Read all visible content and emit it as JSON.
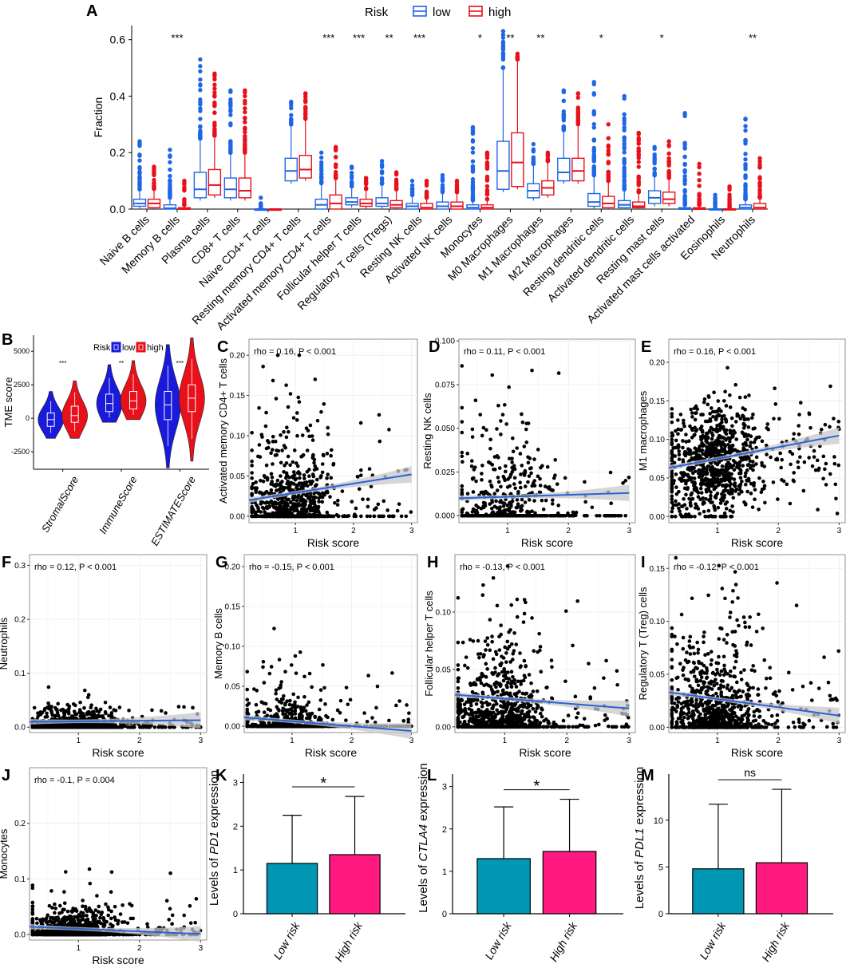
{
  "chart_data": [
    {
      "id": "A",
      "panel_label": "A",
      "type": "box",
      "legend": {
        "title": "Risk",
        "entries": [
          {
            "name": "low",
            "color": "#1f66e5"
          },
          {
            "name": "high",
            "color": "#e8101a"
          }
        ],
        "position": "top"
      },
      "ylabel": "Fraction",
      "ylim": [
        0,
        0.65
      ],
      "yticks": [
        "0.0",
        "0.2",
        "0.4",
        "0.6"
      ],
      "categories": [
        "Naive B cells",
        "Memory B cells",
        "Plasma cells",
        "CD8+ T cells",
        "Naive CD4+ T cells",
        "Resting memory CD4+ T cells",
        "Activated memory CD4+ T cells",
        "Follicular helper T cells",
        "Regulatory T cells (Tregs)",
        "Resting NK cells",
        "Activated NK cells",
        "Monocytes",
        "M0 Macrophages",
        "M1 Macrophages",
        "M2 Macrophages",
        "Resting dendritic cells",
        "Activated dendritic cells",
        "Resting mast cells",
        "Activated mast cells activated",
        "Eosinophils",
        "Neutrophils"
      ],
      "significance": [
        "",
        "***",
        "",
        "",
        "",
        "",
        "***",
        "***",
        "**",
        "***",
        "",
        "*",
        "**",
        "**",
        "",
        "*",
        "",
        "*",
        "",
        "",
        "**"
      ],
      "series": [
        {
          "name": "low",
          "boxes": [
            {
              "q1": 0.01,
              "median": 0.02,
              "q3": 0.035,
              "whisker": 0.07,
              "max": 0.24
            },
            {
              "q1": 0.0,
              "median": 0.003,
              "q3": 0.015,
              "whisker": 0.04,
              "max": 0.21
            },
            {
              "q1": 0.04,
              "median": 0.07,
              "q3": 0.13,
              "whisker": 0.25,
              "max": 0.53
            },
            {
              "q1": 0.04,
              "median": 0.07,
              "q3": 0.11,
              "whisker": 0.2,
              "max": 0.42
            },
            {
              "q1": 0.0,
              "median": 0.0,
              "q3": 0.0,
              "whisker": 0.001,
              "max": 0.04
            },
            {
              "q1": 0.1,
              "median": 0.135,
              "q3": 0.18,
              "whisker": 0.3,
              "max": 0.38
            },
            {
              "q1": 0.0,
              "median": 0.015,
              "q3": 0.035,
              "whisker": 0.09,
              "max": 0.2
            },
            {
              "q1": 0.015,
              "median": 0.025,
              "q3": 0.04,
              "whisker": 0.08,
              "max": 0.15
            },
            {
              "q1": 0.01,
              "median": 0.02,
              "q3": 0.04,
              "whisker": 0.09,
              "max": 0.17
            },
            {
              "q1": 0.0,
              "median": 0.01,
              "q3": 0.02,
              "whisker": 0.05,
              "max": 0.1
            },
            {
              "q1": 0.0,
              "median": 0.01,
              "q3": 0.025,
              "whisker": 0.06,
              "max": 0.12
            },
            {
              "q1": 0.0,
              "median": 0.005,
              "q3": 0.015,
              "whisker": 0.03,
              "max": 0.29
            },
            {
              "q1": 0.07,
              "median": 0.135,
              "q3": 0.24,
              "whisker": 0.5,
              "max": 0.63
            },
            {
              "q1": 0.04,
              "median": 0.065,
              "q3": 0.09,
              "whisker": 0.16,
              "max": 0.23
            },
            {
              "q1": 0.1,
              "median": 0.13,
              "q3": 0.18,
              "whisker": 0.28,
              "max": 0.42
            },
            {
              "q1": 0.01,
              "median": 0.025,
              "q3": 0.055,
              "whisker": 0.12,
              "max": 0.45
            },
            {
              "q1": 0.005,
              "median": 0.015,
              "q3": 0.03,
              "whisker": 0.07,
              "max": 0.4
            },
            {
              "q1": 0.02,
              "median": 0.04,
              "q3": 0.065,
              "whisker": 0.12,
              "max": 0.22
            },
            {
              "q1": 0.0,
              "median": 0.0,
              "q3": 0.005,
              "whisker": 0.015,
              "max": 0.34
            },
            {
              "q1": 0.0,
              "median": 0.0,
              "q3": 0.001,
              "whisker": 0.005,
              "max": 0.05
            },
            {
              "q1": 0.0,
              "median": 0.005,
              "q3": 0.015,
              "whisker": 0.035,
              "max": 0.32
            }
          ]
        },
        {
          "name": "high",
          "boxes": [
            {
              "q1": 0.005,
              "median": 0.02,
              "q3": 0.035,
              "whisker": 0.07,
              "max": 0.15
            },
            {
              "q1": 0.0,
              "median": 0.0,
              "q3": 0.005,
              "whisker": 0.015,
              "max": 0.1
            },
            {
              "q1": 0.05,
              "median": 0.085,
              "q3": 0.14,
              "whisker": 0.26,
              "max": 0.48
            },
            {
              "q1": 0.04,
              "median": 0.065,
              "q3": 0.11,
              "whisker": 0.2,
              "max": 0.42
            },
            {
              "q1": 0.0,
              "median": 0.0,
              "q3": 0.0,
              "whisker": 0.001,
              "max": 0.005
            },
            {
              "q1": 0.11,
              "median": 0.14,
              "q3": 0.19,
              "whisker": 0.32,
              "max": 0.41
            },
            {
              "q1": 0.0,
              "median": 0.02,
              "q3": 0.05,
              "whisker": 0.11,
              "max": 0.22
            },
            {
              "q1": 0.01,
              "median": 0.02,
              "q3": 0.035,
              "whisker": 0.07,
              "max": 0.11
            },
            {
              "q1": 0.005,
              "median": 0.015,
              "q3": 0.03,
              "whisker": 0.07,
              "max": 0.13
            },
            {
              "q1": 0.0,
              "median": 0.005,
              "q3": 0.02,
              "whisker": 0.04,
              "max": 0.1
            },
            {
              "q1": 0.0,
              "median": 0.01,
              "q3": 0.025,
              "whisker": 0.06,
              "max": 0.1
            },
            {
              "q1": 0.0,
              "median": 0.005,
              "q3": 0.015,
              "whisker": 0.035,
              "max": 0.2
            },
            {
              "q1": 0.08,
              "median": 0.165,
              "q3": 0.27,
              "whisker": 0.53,
              "max": 0.55
            },
            {
              "q1": 0.05,
              "median": 0.075,
              "q3": 0.1,
              "whisker": 0.17,
              "max": 0.2
            },
            {
              "q1": 0.1,
              "median": 0.135,
              "q3": 0.18,
              "whisker": 0.3,
              "max": 0.41
            },
            {
              "q1": 0.005,
              "median": 0.02,
              "q3": 0.045,
              "whisker": 0.1,
              "max": 0.3
            },
            {
              "q1": 0.005,
              "median": 0.01,
              "q3": 0.025,
              "whisker": 0.06,
              "max": 0.27
            },
            {
              "q1": 0.02,
              "median": 0.035,
              "q3": 0.06,
              "whisker": 0.11,
              "max": 0.24
            },
            {
              "q1": 0.0,
              "median": 0.0,
              "q3": 0.005,
              "whisker": 0.015,
              "max": 0.16
            },
            {
              "q1": 0.0,
              "median": 0.0,
              "q3": 0.001,
              "whisker": 0.005,
              "max": 0.08
            },
            {
              "q1": 0.0,
              "median": 0.005,
              "q3": 0.02,
              "whisker": 0.04,
              "max": 0.18
            }
          ]
        }
      ]
    },
    {
      "id": "B",
      "panel_label": "B",
      "type": "violin",
      "legend": {
        "title": "Risk",
        "entries": [
          {
            "name": "low",
            "color": "#1a1adb"
          },
          {
            "name": "high",
            "color": "#e8101a"
          }
        ],
        "position": "top"
      },
      "ylabel": "TME score",
      "ylim": [
        -3800,
        6200
      ],
      "yticks": [
        "-2500",
        "0",
        "2500",
        "5000"
      ],
      "categories": [
        "StromalScore",
        "ImmuneScore",
        "ESTIMATEScore"
      ],
      "significance": [
        "***",
        "**",
        "***"
      ],
      "series": [
        {
          "name": "low",
          "groups": [
            {
              "min": -1500,
              "q1": -600,
              "median": -100,
              "q3": 400,
              "max": 2000
            },
            {
              "min": -300,
              "q1": 500,
              "median": 1100,
              "q3": 1800,
              "max": 4000
            },
            {
              "min": -3700,
              "q1": -100,
              "median": 1000,
              "q3": 2000,
              "max": 5500
            }
          ]
        },
        {
          "name": "high",
          "groups": [
            {
              "min": -1500,
              "q1": -300,
              "median": 200,
              "q3": 900,
              "max": 2800
            },
            {
              "min": -100,
              "q1": 700,
              "median": 1300,
              "q3": 2000,
              "max": 4300
            },
            {
              "min": -3200,
              "q1": 500,
              "median": 1500,
              "q3": 2500,
              "max": 6000
            }
          ]
        }
      ]
    },
    {
      "id": "C",
      "panel_label": "C",
      "type": "scatter",
      "annotation": "rho = 0.16, P < 0.001",
      "xlabel": "Risk score",
      "ylabel": "Activated memory CD4+ T cells",
      "xlim": [
        0.2,
        3.1
      ],
      "ylim": [
        -0.008,
        0.22
      ],
      "xticks": [
        1,
        2,
        3
      ],
      "yticks": [
        0,
        0.05,
        0.1,
        0.15,
        0.2
      ],
      "ytick_labels": [
        "0.00",
        "0.05",
        "0.10",
        "0.15",
        "0.20"
      ],
      "fit_line": [
        0.2,
        0.02,
        3.0,
        0.052
      ],
      "n_points": 820,
      "zero_fraction": 0.35,
      "dist_mean": 0.035,
      "dist_max": 0.2,
      "decay": "exp",
      "seed": 11
    },
    {
      "id": "D",
      "panel_label": "D",
      "type": "scatter",
      "annotation": "rho = 0.11, P < 0.001",
      "xlabel": "Risk score",
      "ylabel": "Resting NK cells",
      "xlim": [
        0.2,
        3.1
      ],
      "ylim": [
        -0.004,
        0.101
      ],
      "xticks": [
        1,
        2,
        3
      ],
      "yticks": [
        0,
        0.025,
        0.05,
        0.075,
        0.1
      ],
      "ytick_labels": [
        "0.000",
        "0.025",
        "0.050",
        "0.075",
        "0.100"
      ],
      "fit_line": [
        0.2,
        0.01,
        3.0,
        0.013
      ],
      "n_points": 700,
      "zero_fraction": 0.55,
      "dist_mean": 0.018,
      "dist_max": 0.1,
      "decay": "exp",
      "seed": 23
    },
    {
      "id": "E",
      "panel_label": "E",
      "type": "scatter",
      "annotation": "rho = 0.16, P < 0.001",
      "xlabel": "Risk score",
      "ylabel": "M1 macrophages",
      "xlim": [
        0.2,
        3.1
      ],
      "ylim": [
        -0.008,
        0.23
      ],
      "xticks": [
        1,
        2,
        3
      ],
      "yticks": [
        0,
        0.05,
        0.1,
        0.15,
        0.2
      ],
      "ytick_labels": [
        "0.00",
        "0.05",
        "0.10",
        "0.15",
        "0.20"
      ],
      "fit_line": [
        0.2,
        0.063,
        3.0,
        0.105
      ],
      "n_points": 900,
      "zero_fraction": 0.0,
      "dist_mean": 0.07,
      "dist_max": 0.21,
      "decay": "norm",
      "seed": 37
    },
    {
      "id": "F",
      "panel_label": "F",
      "type": "scatter",
      "annotation": "rho = 0.12, P < 0.001",
      "xlabel": "Risk score",
      "ylabel": "Neutrophils",
      "xlim": [
        0.2,
        3.1
      ],
      "ylim": [
        -0.01,
        0.32
      ],
      "xticks": [
        1,
        2,
        3
      ],
      "yticks": [
        0,
        0.1,
        0.2,
        0.3
      ],
      "ytick_labels": [
        "0.0",
        "0.1",
        "0.2",
        "0.3"
      ],
      "fit_line": [
        0.2,
        0.01,
        3.0,
        0.013
      ],
      "n_points": 900,
      "zero_fraction": 0.45,
      "dist_mean": 0.012,
      "dist_max": 0.31,
      "decay": "exp",
      "seed": 41
    },
    {
      "id": "G",
      "panel_label": "G",
      "type": "scatter",
      "annotation": "rho = -0.15, P < 0.001",
      "xlabel": "Risk score",
      "ylabel": "Memory B cells",
      "xlim": [
        0.2,
        3.1
      ],
      "ylim": [
        -0.008,
        0.215
      ],
      "xticks": [
        1,
        2,
        3
      ],
      "yticks": [
        0,
        0.05,
        0.1,
        0.15,
        0.2
      ],
      "ytick_labels": [
        "0.00",
        "0.05",
        "0.10",
        "0.15",
        "0.20"
      ],
      "fit_line": [
        0.2,
        0.011,
        3.0,
        -0.006
      ],
      "n_points": 850,
      "zero_fraction": 0.65,
      "dist_mean": 0.02,
      "dist_max": 0.21,
      "decay": "exp",
      "seed": 53
    },
    {
      "id": "H",
      "panel_label": "H",
      "type": "scatter",
      "annotation": "rho = -0.13, P < 0.001",
      "xlabel": "Risk score",
      "ylabel": "Follicular helper T cells",
      "xlim": [
        0.2,
        3.1
      ],
      "ylim": [
        -0.005,
        0.15
      ],
      "xticks": [
        1,
        2,
        3
      ],
      "yticks": [
        0,
        0.05,
        0.1
      ],
      "ytick_labels": [
        "0.00",
        "0.05",
        "0.10"
      ],
      "fit_line": [
        0.2,
        0.028,
        3.0,
        0.016
      ],
      "n_points": 900,
      "zero_fraction": 0.25,
      "dist_mean": 0.025,
      "dist_max": 0.14,
      "decay": "exp",
      "seed": 67
    },
    {
      "id": "I",
      "panel_label": "I",
      "type": "scatter",
      "annotation": "rho = -0.12, P < 0.001",
      "xlabel": "Risk score",
      "ylabel": "Regulatory T (Treg) cells",
      "xlim": [
        0.2,
        3.1
      ],
      "ylim": [
        -0.005,
        0.163
      ],
      "xticks": [
        1,
        2,
        3
      ],
      "yticks": [
        0,
        0.05,
        0.1,
        0.15
      ],
      "ytick_labels": [
        "0.00",
        "0.05",
        "0.10",
        "0.15"
      ],
      "fit_line": [
        0.2,
        0.033,
        3.0,
        0.011
      ],
      "n_points": 900,
      "zero_fraction": 0.2,
      "dist_mean": 0.03,
      "dist_max": 0.16,
      "decay": "exp",
      "seed": 79
    },
    {
      "id": "J",
      "panel_label": "J",
      "type": "scatter",
      "annotation": "rho = -0.1, P = 0.004",
      "xlabel": "Risk score",
      "ylabel": "Monocytes",
      "xlim": [
        0.2,
        3.1
      ],
      "ylim": [
        -0.01,
        0.3
      ],
      "xticks": [
        1,
        2,
        3
      ],
      "yticks": [
        0,
        0.1,
        0.2
      ],
      "ytick_labels": [
        "0.0",
        "0.1",
        "0.2"
      ],
      "fit_line": [
        0.2,
        0.014,
        3.0,
        0.001
      ],
      "n_points": 900,
      "zero_fraction": 0.4,
      "dist_mean": 0.018,
      "dist_max": 0.29,
      "decay": "exp",
      "seed": 97
    },
    {
      "id": "K",
      "panel_label": "K",
      "type": "bar",
      "ylabel_prefix": "Levels of ",
      "ylabel_gene": "PD1",
      "ylabel_suffix": " expression",
      "categories": [
        "Low risk",
        "High risk"
      ],
      "values": [
        1.15,
        1.35
      ],
      "errors": [
        2.25,
        2.68
      ],
      "ylim": [
        0,
        3.1
      ],
      "yticks": [
        0,
        1,
        2,
        3
      ],
      "significance": "*"
    },
    {
      "id": "L",
      "panel_label": "L",
      "type": "bar",
      "ylabel_prefix": "Levels of ",
      "ylabel_gene": "CTLA4",
      "ylabel_suffix": " expression",
      "categories": [
        "Low risk",
        "High risk"
      ],
      "values": [
        1.3,
        1.47
      ],
      "errors": [
        2.52,
        2.7
      ],
      "ylim": [
        0,
        3.2
      ],
      "yticks": [
        0,
        1,
        2,
        3
      ],
      "significance": "*"
    },
    {
      "id": "M",
      "panel_label": "M",
      "type": "bar",
      "ylabel_prefix": "Levels of ",
      "ylabel_gene": "PDL1",
      "ylabel_suffix": " expression",
      "categories": [
        "Low risk",
        "High risk"
      ],
      "values": [
        4.8,
        5.45
      ],
      "errors": [
        11.7,
        13.3
      ],
      "ylim": [
        0,
        14.5
      ],
      "yticks": [
        0,
        5,
        10
      ],
      "significance": "ns"
    }
  ],
  "colors": {
    "box_low": "#1f66e5",
    "box_high": "#e8101a",
    "violin_low": "#1a1adb",
    "violin_high": "#e8101a",
    "scatter_point": "#000000",
    "fit_line": "#2a62d8",
    "fit_ci": "#c8c8c8",
    "bar_low": "#0096b4",
    "bar_high": "#ff1980",
    "grid": "#ececec",
    "plot_bg": "#ffffff"
  }
}
